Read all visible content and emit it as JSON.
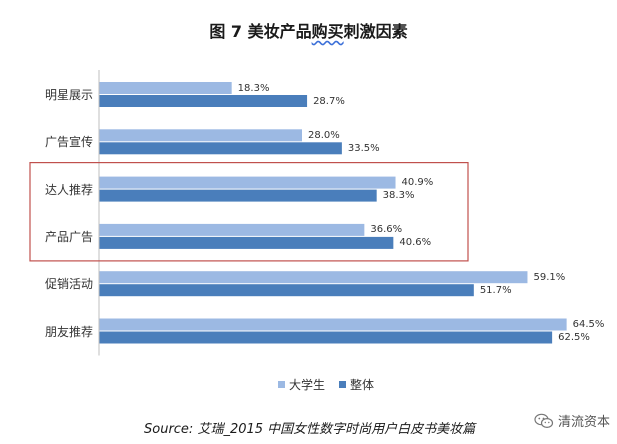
{
  "chart_data": {
    "type": "bar",
    "orientation": "horizontal",
    "title_main": "图 7 美妆产品",
    "title_underlined": "购买",
    "title_rest": "刺激因素",
    "categories": [
      "明星展示",
      "广告宣传",
      "达人推荐",
      "产品广告",
      "促销活动",
      "朋友推荐"
    ],
    "series": [
      {
        "name": "大学生",
        "values": [
          18.3,
          28.0,
          40.9,
          36.6,
          59.1,
          64.5
        ],
        "labels": [
          "18.3%",
          "28.0%",
          "40.9%",
          "36.6%",
          "59.1%",
          "64.5%"
        ],
        "color": "#9cb9e3"
      },
      {
        "name": "整体",
        "values": [
          28.7,
          33.5,
          38.3,
          40.6,
          51.7,
          62.5
        ],
        "labels": [
          "28.7%",
          "33.5%",
          "38.3%",
          "40.6%",
          "51.7%",
          "62.5%"
        ],
        "color": "#4a7ebb"
      }
    ],
    "xlim": [
      0,
      70
    ],
    "grid": false,
    "legend_position": "bottom",
    "highlight_box": {
      "categories": [
        "达人推荐",
        "产品广告"
      ],
      "color": "#c0504d"
    }
  },
  "source": "Source: 艾瑞_2015 中国女性数字时尚用户白皮书美妆篇",
  "watermark": {
    "text": "清流资本",
    "icon": "wechat-icon"
  }
}
